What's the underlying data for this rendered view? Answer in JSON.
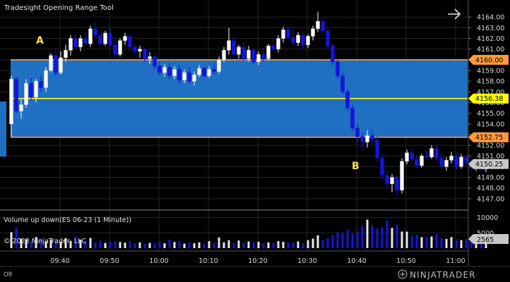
{
  "window": {
    "title": "Tradesight Opening Range Tool",
    "arrow_icon": "arrow-right-icon"
  },
  "annotations": {
    "marker_a": "A",
    "marker_b": "B"
  },
  "price_panel": {
    "price_ticks": [
      "4164.00",
      "4163.00",
      "4162.00",
      "4161.00",
      "4160.00",
      "4159.00",
      "4158.00",
      "4157.00",
      "4156.00",
      "4155.00",
      "4154.00",
      "4153.00",
      "4152.00",
      "4151.00",
      "4150.00",
      "4149.00",
      "4148.00",
      "4147.00"
    ],
    "price_tick_values": [
      4164,
      4163,
      4162,
      4161,
      4160,
      4159,
      4158,
      4157,
      4156,
      4155,
      4154,
      4153,
      4152,
      4151,
      4150,
      4149,
      4148,
      4147
    ],
    "y_top_value": 4165.2,
    "y_bottom_value": 4146.2,
    "opening_range": {
      "high": 4160.0,
      "high_label": "4160.00",
      "mid": 4156.38,
      "mid_label": "4156.38",
      "low": 4152.75,
      "low_label": "4152.75"
    },
    "last_price": 4150.25,
    "last_price_label": "4150.25",
    "colors": {
      "range_fill": "#1f6fc2",
      "range_border": "#ff9a3c",
      "mid_line": "#ffff00",
      "last_price_badge": "#c8c8c8",
      "up_bar": "#ffffff",
      "down_bar": "#1515e0"
    }
  },
  "volume_panel": {
    "title": "Volume up down(ES 06-23 (1 Minute))",
    "ticks": [
      "10000",
      "5000"
    ],
    "tick_values": [
      10000,
      5000
    ],
    "max_value": 11500,
    "last_volume_label": "2565",
    "copyright": "© 2023 NinjaTrader, LLC"
  },
  "time_axis": {
    "labels": [
      "09:40",
      "09:50",
      "10:00",
      "10:10",
      "10:20",
      "10:30",
      "10:40",
      "10:50",
      "11:00"
    ],
    "minutes": [
      10,
      20,
      30,
      40,
      50,
      60,
      70,
      80,
      90
    ]
  },
  "footer": {
    "or_label": "OR",
    "brand": "NINJATRADER",
    "brand_icon": "ninjatrader-logo-icon"
  },
  "chart_data": {
    "type": "candlestick",
    "title": "Tradesight Opening Range Tool",
    "instrument": "ES 06-23 (1 Minute)",
    "x_start": "09:30",
    "x_ticks": [
      "09:40",
      "09:50",
      "10:00",
      "10:10",
      "10:20",
      "10:30",
      "10:40",
      "10:50",
      "11:00"
    ],
    "ylim": [
      4146.2,
      4165.2
    ],
    "ohlc": [
      [
        4154.0,
        4158.5,
        4152.8,
        4158.2
      ],
      [
        4158.2,
        4158.4,
        4155.0,
        4155.2
      ],
      [
        4155.2,
        4156.3,
        4154.5,
        4155.8
      ],
      [
        4155.8,
        4158.2,
        4155.5,
        4157.8
      ],
      [
        4157.8,
        4158.3,
        4156.2,
        4156.5
      ],
      [
        4156.5,
        4158.2,
        4156.0,
        4158.0
      ],
      [
        4158.0,
        4158.5,
        4157.0,
        4157.4
      ],
      [
        4157.4,
        4159.3,
        4157.0,
        4159.0
      ],
      [
        4159.0,
        4160.6,
        4158.8,
        4160.4
      ],
      [
        4160.4,
        4161.0,
        4158.5,
        4158.8
      ],
      [
        4158.8,
        4160.8,
        4158.6,
        4160.2
      ],
      [
        4160.2,
        4161.4,
        4159.8,
        4160.9
      ],
      [
        4160.9,
        4162.3,
        4160.4,
        4162.0
      ],
      [
        4162.0,
        4162.5,
        4161.0,
        4161.2
      ],
      [
        4161.2,
        4162.3,
        4160.8,
        4162.0
      ],
      [
        4162.0,
        4162.6,
        4161.3,
        4161.5
      ],
      [
        4161.5,
        4163.2,
        4161.2,
        4162.9
      ],
      [
        4162.9,
        4163.5,
        4162.1,
        4162.3
      ],
      [
        4162.3,
        4162.6,
        4161.2,
        4161.5
      ],
      [
        4161.5,
        4162.7,
        4161.3,
        4162.5
      ],
      [
        4162.5,
        4162.9,
        4161.2,
        4161.4
      ],
      [
        4161.4,
        4161.8,
        4160.2,
        4160.5
      ],
      [
        4160.5,
        4162.0,
        4160.3,
        4161.8
      ],
      [
        4161.8,
        4162.5,
        4161.4,
        4162.2
      ],
      [
        4162.2,
        4162.4,
        4160.9,
        4161.2
      ],
      [
        4161.2,
        4161.5,
        4160.5,
        4160.8
      ],
      [
        4160.8,
        4161.3,
        4160.2,
        4161.0
      ],
      [
        4161.0,
        4161.2,
        4159.8,
        4160.1
      ],
      [
        4160.1,
        4160.7,
        4159.6,
        4160.3
      ],
      [
        4160.3,
        4160.5,
        4159.1,
        4159.4
      ],
      [
        4159.4,
        4159.8,
        4158.5,
        4158.8
      ],
      [
        4158.8,
        4159.6,
        4158.4,
        4159.3
      ],
      [
        4159.3,
        4159.7,
        4158.2,
        4158.5
      ],
      [
        4158.5,
        4159.4,
        4158.2,
        4159.1
      ],
      [
        4159.1,
        4159.5,
        4157.8,
        4158.1
      ],
      [
        4158.1,
        4159.1,
        4157.8,
        4158.8
      ],
      [
        4158.8,
        4159.3,
        4157.7,
        4158.0
      ],
      [
        4158.0,
        4158.9,
        4157.6,
        4158.6
      ],
      [
        4158.6,
        4159.5,
        4158.4,
        4159.2
      ],
      [
        4159.2,
        4159.4,
        4158.3,
        4158.5
      ],
      [
        4158.5,
        4159.4,
        4158.3,
        4159.1
      ],
      [
        4159.1,
        4159.7,
        4158.6,
        4158.9
      ],
      [
        4158.9,
        4160.3,
        4158.7,
        4160.0
      ],
      [
        4160.0,
        4161.2,
        4159.8,
        4160.9
      ],
      [
        4160.9,
        4163.0,
        4160.5,
        4161.8
      ],
      [
        4161.8,
        4162.2,
        4160.3,
        4160.5
      ],
      [
        4160.5,
        4161.4,
        4160.1,
        4161.2
      ],
      [
        4161.2,
        4161.6,
        4159.9,
        4160.1
      ],
      [
        4160.1,
        4161.3,
        4159.8,
        4160.9
      ],
      [
        4160.9,
        4161.1,
        4159.6,
        4159.8
      ],
      [
        4159.8,
        4160.8,
        4159.5,
        4160.5
      ],
      [
        4160.5,
        4161.2,
        4159.8,
        4160.1
      ],
      [
        4160.1,
        4161.5,
        4159.9,
        4161.3
      ],
      [
        4161.3,
        4162.0,
        4160.8,
        4161.0
      ],
      [
        4161.0,
        4162.3,
        4160.7,
        4162.0
      ],
      [
        4162.0,
        4163.1,
        4161.6,
        4162.8
      ],
      [
        4162.8,
        4163.1,
        4161.8,
        4162.1
      ],
      [
        4162.1,
        4162.8,
        4161.3,
        4161.6
      ],
      [
        4161.6,
        4162.6,
        4161.3,
        4162.3
      ],
      [
        4162.3,
        4162.6,
        4161.0,
        4161.4
      ],
      [
        4161.4,
        4162.4,
        4161.1,
        4162.2
      ],
      [
        4162.2,
        4163.2,
        4161.8,
        4162.9
      ],
      [
        4162.9,
        4164.5,
        4162.6,
        4163.6
      ],
      [
        4163.6,
        4163.9,
        4162.4,
        4162.7
      ],
      [
        4162.7,
        4163.0,
        4161.0,
        4161.3
      ],
      [
        4161.3,
        4161.6,
        4159.5,
        4159.8
      ],
      [
        4159.8,
        4160.1,
        4158.2,
        4158.5
      ],
      [
        4158.5,
        4158.8,
        4156.8,
        4157.0
      ],
      [
        4157.0,
        4157.3,
        4155.2,
        4155.5
      ],
      [
        4155.5,
        4155.8,
        4153.3,
        4153.6
      ],
      [
        4153.6,
        4154.0,
        4152.2,
        4152.8
      ],
      [
        4152.8,
        4153.2,
        4151.7,
        4152.3
      ],
      [
        4152.3,
        4153.4,
        4151.8,
        4152.9
      ],
      [
        4152.9,
        4153.5,
        4152.1,
        4152.5
      ],
      [
        4152.5,
        4152.8,
        4150.5,
        4150.8
      ],
      [
        4150.8,
        4151.1,
        4148.8,
        4149.2
      ],
      [
        4149.2,
        4149.6,
        4148.0,
        4148.4
      ],
      [
        4148.4,
        4149.3,
        4147.6,
        4149.0
      ],
      [
        4149.0,
        4149.2,
        4147.2,
        4147.8
      ],
      [
        4147.8,
        4150.8,
        4147.5,
        4150.5
      ],
      [
        4150.5,
        4151.6,
        4150.2,
        4151.3
      ],
      [
        4151.3,
        4151.6,
        4150.4,
        4150.7
      ],
      [
        4150.7,
        4151.1,
        4149.8,
        4150.1
      ],
      [
        4150.1,
        4151.2,
        4149.9,
        4151.0
      ],
      [
        4151.0,
        4151.6,
        4150.6,
        4150.9
      ],
      [
        4150.9,
        4152.0,
        4150.7,
        4151.7
      ],
      [
        4151.7,
        4152.1,
        4150.5,
        4150.8
      ],
      [
        4150.8,
        4151.2,
        4149.8,
        4150.0
      ],
      [
        4150.0,
        4150.9,
        4149.6,
        4150.6
      ],
      [
        4150.6,
        4151.4,
        4150.3,
        4151.0
      ],
      [
        4151.0,
        4151.3,
        4149.7,
        4150.0
      ],
      [
        4150.0,
        4151.2,
        4149.8,
        4150.9
      ],
      [
        4150.9,
        4151.1,
        4150.2,
        4150.4
      ],
      [
        4150.4,
        4150.9,
        4149.6,
        4149.9
      ],
      [
        4149.9,
        4150.7,
        4149.6,
        4150.4
      ],
      [
        4150.4,
        4150.6,
        4149.5,
        4149.8
      ],
      [
        4149.8,
        4150.6,
        4149.5,
        4150.25
      ]
    ],
    "volume": [
      5200,
      6800,
      3100,
      2900,
      2400,
      3600,
      3100,
      2200,
      2700,
      2300,
      2100,
      3300,
      2400,
      3900,
      2800,
      2600,
      3300,
      1900,
      2400,
      1700,
      2100,
      2300,
      2000,
      1800,
      2300,
      1600,
      1900,
      1400,
      1700,
      1500,
      2200,
      1600,
      2800,
      2000,
      2400,
      1500,
      1800,
      1600,
      1900,
      1500,
      2300,
      1700,
      3500,
      1900,
      2600,
      1700,
      2500,
      1800,
      2200,
      1900,
      2100,
      1600,
      1900,
      1700,
      2300,
      2100,
      1900,
      1800,
      2200,
      1600,
      2600,
      3100,
      4200,
      2600,
      3300,
      4300,
      5200,
      4800,
      6000,
      4700,
      5500,
      7300,
      9300,
      7300,
      6400,
      6900,
      9000,
      6600,
      7600,
      5400,
      5400,
      4200,
      4400,
      3600,
      3700,
      3800,
      4600,
      3300,
      3000,
      3600,
      2900,
      2600,
      3000,
      2400,
      2700,
      2300,
      2565
    ]
  }
}
